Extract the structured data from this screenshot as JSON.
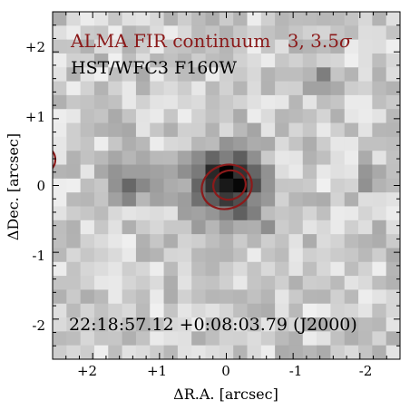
{
  "image": {
    "cmap": "grayscale",
    "source_galaxy_position": "center",
    "colors": {
      "contour": "#8b1a1a",
      "alma_text": "#8b1a1a",
      "frame": "#000000"
    }
  },
  "legend": {
    "alma_label": "ALMA FIR continuum",
    "alma_levels": "3, 3.5",
    "alma_sigma": "σ",
    "hst_label": "HST/WFC3 F160W"
  },
  "coordinates_label": "22:18:57.12 +0:08:03.79 (J2000)",
  "axes": {
    "xlabel": "ΔR.A. [arcsec]",
    "ylabel": "ΔDec. [arcsec]",
    "xlim": [
      2.6,
      -2.6
    ],
    "ylim": [
      -2.6,
      2.6
    ],
    "xticks": [
      {
        "value": 2,
        "label": "+2"
      },
      {
        "value": 1,
        "label": "+1"
      },
      {
        "value": 0,
        "label": "0"
      },
      {
        "value": -1,
        "label": "-1"
      },
      {
        "value": -2,
        "label": "-2"
      }
    ],
    "yticks": [
      {
        "value": 2,
        "label": "+2"
      },
      {
        "value": 1,
        "label": "+1"
      },
      {
        "value": 0,
        "label": "0"
      },
      {
        "value": -1,
        "label": "-1"
      },
      {
        "value": -2,
        "label": "-2"
      }
    ]
  }
}
